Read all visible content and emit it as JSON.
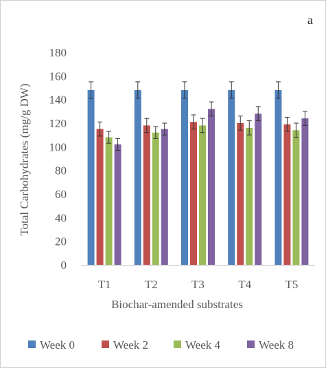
{
  "chart_data": {
    "type": "bar",
    "panel_label": "a",
    "categories": [
      "T1",
      "T2",
      "T3",
      "T4",
      "T5"
    ],
    "series": [
      {
        "name": "Week 0",
        "color": "#4F81BD",
        "values": [
          148,
          148,
          148,
          148,
          148
        ],
        "errors": [
          7,
          7,
          7,
          7,
          7
        ]
      },
      {
        "name": "Week 2",
        "color": "#C0504D",
        "values": [
          115,
          118,
          121,
          120,
          119
        ],
        "errors": [
          6,
          6,
          6,
          6,
          6
        ]
      },
      {
        "name": "Week 4",
        "color": "#9BBB59",
        "values": [
          108,
          112,
          118,
          116,
          114
        ],
        "errors": [
          5,
          5,
          6,
          6,
          6
        ]
      },
      {
        "name": "Week 8",
        "color": "#8064A2",
        "values": [
          102,
          115,
          132,
          128,
          124
        ],
        "errors": [
          5,
          5,
          6,
          6,
          6
        ]
      }
    ],
    "xlabel": "Biochar-amended substrates",
    "ylabel": "Total Carbohydrates (mg/g DW)",
    "ylim": [
      0,
      180
    ],
    "yticks": [
      0,
      20,
      40,
      60,
      80,
      100,
      120,
      140,
      160,
      180
    ],
    "grid": false,
    "legend_position": "bottom"
  }
}
